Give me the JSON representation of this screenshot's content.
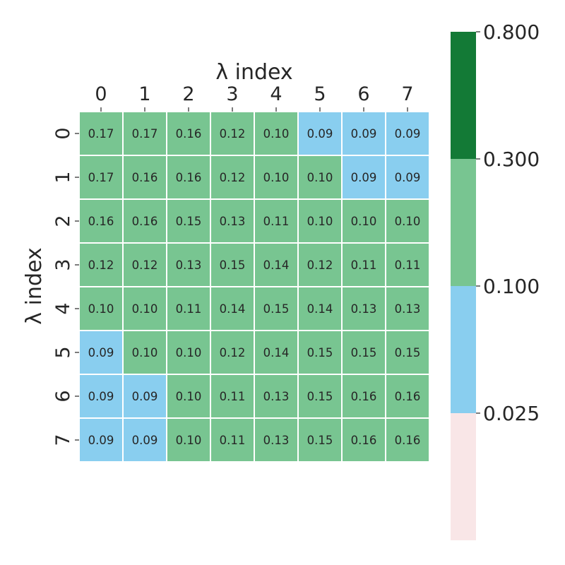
{
  "chart_data": {
    "type": "heatmap",
    "title": "",
    "xlabel": "λ index",
    "ylabel": "λ index",
    "x_categories": [
      "0",
      "1",
      "2",
      "3",
      "4",
      "5",
      "6",
      "7"
    ],
    "y_categories": [
      "0",
      "1",
      "2",
      "3",
      "4",
      "5",
      "6",
      "7"
    ],
    "x_axis_position": "top",
    "values": [
      [
        0.17,
        0.17,
        0.16,
        0.12,
        0.1,
        0.09,
        0.09,
        0.09
      ],
      [
        0.17,
        0.16,
        0.16,
        0.12,
        0.1,
        0.1,
        0.09,
        0.09
      ],
      [
        0.16,
        0.16,
        0.15,
        0.13,
        0.11,
        0.1,
        0.1,
        0.1
      ],
      [
        0.12,
        0.12,
        0.13,
        0.15,
        0.14,
        0.12,
        0.11,
        0.11
      ],
      [
        0.1,
        0.1,
        0.11,
        0.14,
        0.15,
        0.14,
        0.13,
        0.13
      ],
      [
        0.09,
        0.1,
        0.1,
        0.12,
        0.14,
        0.15,
        0.15,
        0.15
      ],
      [
        0.09,
        0.09,
        0.1,
        0.11,
        0.13,
        0.15,
        0.16,
        0.16
      ],
      [
        0.09,
        0.09,
        0.1,
        0.11,
        0.13,
        0.15,
        0.16,
        0.16
      ]
    ],
    "colorbar": {
      "tick_labels": [
        "0.800",
        "0.300",
        "0.100",
        "0.025"
      ],
      "bins": [
        {
          "min": 0.0,
          "max": 0.025,
          "color": "#f9e6e7"
        },
        {
          "min": 0.025,
          "max": 0.1,
          "color": "#89ceef"
        },
        {
          "min": 0.1,
          "max": 0.3,
          "color": "#78c591"
        },
        {
          "min": 0.3,
          "max": 0.8,
          "color": "#137a36"
        }
      ]
    }
  }
}
